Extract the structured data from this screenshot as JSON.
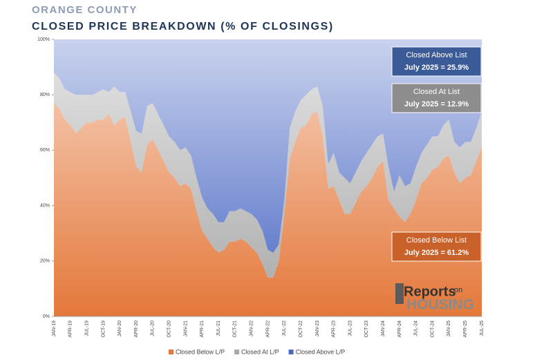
{
  "chart_data": {
    "type": "stacked-area",
    "title": "ORANGE COUNTY",
    "subtitle": "CLOSED PRICE BREAKDOWN (% OF CLOSINGS)",
    "categories": [
      "JAN-19",
      null,
      null,
      "APR-19",
      null,
      null,
      "JUL-19",
      null,
      null,
      "OCT-19",
      null,
      null,
      "JAN-20",
      null,
      null,
      "APR-20",
      null,
      null,
      "JUL-20",
      null,
      null,
      "OCT-20",
      null,
      null,
      "JAN-21",
      null,
      null,
      "APR-21",
      null,
      null,
      "JUL-21",
      null,
      null,
      "OCT-21",
      null,
      null,
      "JAN-22",
      null,
      null,
      "APR-22",
      null,
      null,
      "JUL-22",
      null,
      null,
      "OCT-22",
      null,
      null,
      "JAN-23",
      null,
      null,
      "APR-23",
      null,
      null,
      "JUL-23",
      null,
      null,
      "OCT-23",
      null,
      null,
      "JAN-24",
      null,
      null,
      "APR-24",
      null,
      null,
      "JUL-24",
      null,
      null,
      "OCT-24",
      null,
      null,
      "JAN-25",
      null,
      null,
      "APR-25",
      null,
      null,
      "JUL-25"
    ],
    "series": [
      {
        "name": "Closed Below L/P",
        "color": "#e4783a",
        "values": [
          77,
          75,
          71,
          69,
          66,
          68,
          70,
          70,
          71,
          71,
          73,
          69,
          71,
          72,
          63,
          54,
          52,
          62,
          64,
          60,
          56,
          52,
          50,
          47,
          48,
          46,
          38,
          31,
          28,
          25,
          23,
          24,
          27,
          27,
          28,
          27,
          25,
          23,
          19,
          14,
          14,
          20,
          37,
          57,
          63,
          68,
          69,
          73,
          74,
          65,
          46,
          47,
          42,
          37,
          37,
          41,
          45,
          47,
          50,
          54,
          56,
          42,
          39,
          36,
          34,
          37,
          42,
          48,
          50,
          53,
          54,
          57,
          58,
          52,
          48,
          50,
          51,
          56,
          61.2
        ]
      },
      {
        "name": "Closed At L/P",
        "color": "#a9a9a9",
        "values": [
          11,
          11,
          11,
          12,
          14,
          12,
          10,
          10,
          10,
          11,
          8,
          14,
          10,
          9,
          11,
          13,
          14,
          14,
          13,
          13,
          13,
          13,
          13,
          13,
          13,
          12,
          12,
          12,
          11,
          12,
          11,
          10,
          11,
          11,
          11,
          11,
          12,
          12,
          12,
          10,
          9,
          6,
          5,
          11,
          11,
          10,
          11,
          9,
          9,
          11,
          9,
          12,
          10,
          13,
          11,
          11,
          11,
          12,
          12,
          11,
          10,
          12,
          6,
          15,
          13,
          11,
          12,
          11,
          12,
          12,
          11,
          12,
          13,
          11,
          13,
          13,
          12,
          12,
          12.9
        ]
      },
      {
        "name": "Closed Above L/P",
        "color": "#4a68c4",
        "values": [
          12,
          14,
          18,
          19,
          20,
          20,
          20,
          20,
          19,
          18,
          19,
          17,
          19,
          19,
          26,
          33,
          34,
          24,
          23,
          27,
          31,
          35,
          37,
          40,
          39,
          42,
          50,
          57,
          61,
          63,
          66,
          66,
          62,
          62,
          61,
          62,
          63,
          65,
          69,
          76,
          77,
          74,
          58,
          32,
          26,
          22,
          20,
          18,
          17,
          24,
          45,
          41,
          48,
          50,
          52,
          48,
          44,
          41,
          38,
          35,
          34,
          46,
          55,
          49,
          53,
          52,
          46,
          41,
          38,
          35,
          35,
          31,
          29,
          37,
          39,
          37,
          37,
          32,
          25.9
        ]
      }
    ],
    "ylim": [
      0,
      100
    ],
    "yticks": [
      {
        "value": 0,
        "label": "0%"
      },
      {
        "value": 20,
        "label": "20%"
      },
      {
        "value": 40,
        "label": "40%"
      },
      {
        "value": 60,
        "label": "60%"
      },
      {
        "value": 80,
        "label": "80%"
      },
      {
        "value": 100,
        "label": "100%"
      }
    ],
    "legend": "bottom",
    "annotations": [
      {
        "lines": [
          "Closed Above List",
          "July 2025 = 25.9%"
        ],
        "color": "#3a5a98"
      },
      {
        "lines": [
          "Closed At List",
          "July 2025 = 12.9%"
        ],
        "color": "#8d8d8d"
      },
      {
        "lines": [
          "Closed Below List",
          "July 2025 = 61.2%"
        ],
        "color": "#c8612a"
      }
    ],
    "logo": {
      "word": "Reports",
      "small": "on",
      "big": "HOUSING"
    }
  }
}
